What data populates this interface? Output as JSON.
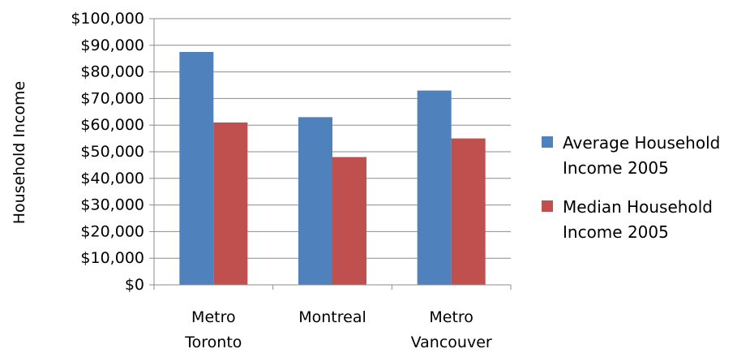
{
  "chart_data": {
    "type": "bar",
    "ylabel": "Household Income",
    "categories": [
      "Metro Toronto",
      "Montreal",
      "Metro Vancouver"
    ],
    "category_lines": [
      [
        "Metro",
        "Toronto"
      ],
      [
        "Montreal"
      ],
      [
        "Metro",
        "Vancouver"
      ]
    ],
    "series": [
      {
        "name": "Average Household Income 2005",
        "name_lines": [
          "Average Household",
          "Income 2005"
        ],
        "color": "#4F81BD",
        "values": [
          87500,
          63000,
          73000
        ]
      },
      {
        "name": "Median Household Income 2005",
        "name_lines": [
          "Median Household",
          "Income 2005"
        ],
        "color": "#C0504D",
        "values": [
          61000,
          48000,
          55000
        ]
      }
    ],
    "ylim": [
      0,
      100000
    ],
    "yticks": [
      0,
      10000,
      20000,
      30000,
      40000,
      50000,
      60000,
      70000,
      80000,
      90000,
      100000
    ],
    "ytick_labels": [
      "$0",
      "$10,000",
      "$20,000",
      "$30,000",
      "$40,000",
      "$50,000",
      "$60,000",
      "$70,000",
      "$80,000",
      "$90,000",
      "$100,000"
    ],
    "grid": true,
    "legend_position": "right"
  }
}
